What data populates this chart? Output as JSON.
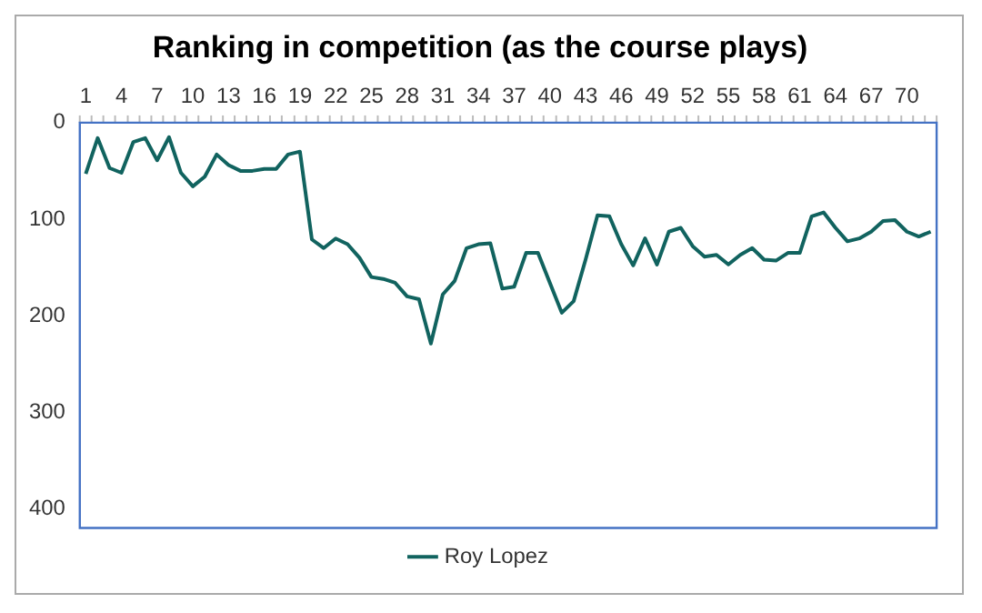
{
  "chart_data": {
    "type": "line",
    "title": "Ranking in competition (as the course plays)",
    "categories": [
      "1",
      null,
      null,
      "4",
      null,
      null,
      "7",
      null,
      null,
      "10",
      null,
      null,
      "13",
      null,
      null,
      "16",
      null,
      null,
      "19",
      null,
      null,
      "22",
      null,
      null,
      "25",
      null,
      null,
      "28",
      null,
      null,
      "31",
      null,
      null,
      "34",
      null,
      null,
      "37",
      null,
      null,
      "40",
      null,
      null,
      "43",
      null,
      null,
      "46",
      null,
      null,
      "49",
      null,
      null,
      "52",
      null,
      null,
      "55",
      null,
      null,
      "58",
      null,
      null,
      "61",
      null,
      null,
      "64",
      null,
      null,
      "67",
      null,
      null,
      "70",
      null,
      null
    ],
    "series": [
      {
        "name": "Roy Lopez",
        "color": "#11635f",
        "values": [
          53,
          16,
          47,
          52,
          20,
          16,
          39,
          15,
          52,
          66,
          56,
          33,
          44,
          50,
          50,
          48,
          48,
          33,
          30,
          121,
          130,
          120,
          126,
          140,
          160,
          162,
          166,
          180,
          183,
          229,
          178,
          164,
          130,
          126,
          125,
          172,
          170,
          135,
          135,
          166,
          197,
          185,
          142,
          96,
          97,
          126,
          148,
          120,
          147,
          113,
          109,
          128,
          139,
          137,
          147,
          137,
          130,
          142,
          143,
          135,
          135,
          97,
          93,
          109,
          123,
          120,
          113,
          102,
          101,
          113,
          118,
          113
        ]
      }
    ],
    "ylim": [
      420,
      0
    ],
    "yticks": [
      0,
      100,
      200,
      300,
      400
    ],
    "legend": "bottom",
    "marker": "none"
  }
}
